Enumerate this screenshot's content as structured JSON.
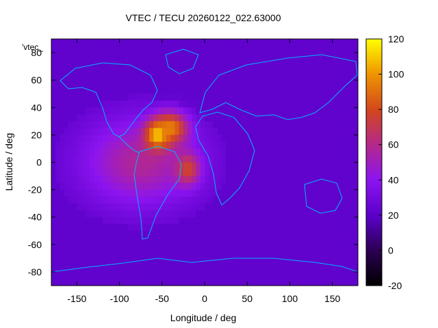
{
  "chart_data": {
    "type": "heatmap",
    "title": "VTEC / TECU 20260122_022.63000",
    "xlabel": "Longitude / deg",
    "ylabel": "Latitude / deg",
    "xlim": [
      -180,
      180
    ],
    "ylim": [
      -90,
      90
    ],
    "x_ticks": [
      -150,
      -100,
      -50,
      0,
      50,
      100,
      150
    ],
    "y_ticks": [
      -80,
      -60,
      -40,
      -20,
      0,
      20,
      40,
      60,
      80
    ],
    "colorbar": {
      "range": [
        -20,
        120
      ],
      "ticks": [
        -20,
        0,
        20,
        40,
        60,
        80,
        100,
        120
      ]
    },
    "legend": {
      "label": "'vtec_",
      "position": "top-left"
    },
    "grid_resolution_deg": [
      5,
      5
    ],
    "background_vtec": 22,
    "hotspots": [
      {
        "lon": -55,
        "lat": 20,
        "peak": 112,
        "sigma_lon": 10,
        "sigma_lat": 7
      },
      {
        "lon": -40,
        "lat": 25,
        "peak": 95,
        "sigma_lon": 14,
        "sigma_lat": 8
      },
      {
        "lon": -20,
        "lat": -5,
        "peak": 78,
        "sigma_lon": 10,
        "sigma_lat": 8
      }
    ],
    "equatorial_band": {
      "lon_center": -75,
      "lon_halfwidth": 80,
      "lat_center": 0,
      "lat_halfwidth": 38,
      "value": 58
    },
    "coastlines_overlay": true
  }
}
